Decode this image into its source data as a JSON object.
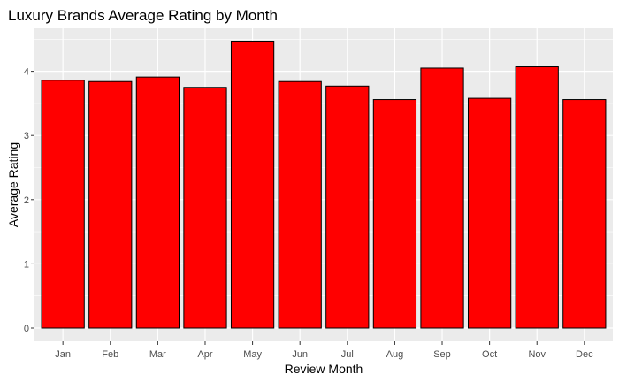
{
  "chart_data": {
    "type": "bar",
    "title": "Luxury Brands Average Rating by Month",
    "xlabel": "Review Month",
    "ylabel": "Average Rating",
    "categories": [
      "Jan",
      "Feb",
      "Mar",
      "Apr",
      "May",
      "Jun",
      "Jul",
      "Aug",
      "Sep",
      "Oct",
      "Nov",
      "Dec"
    ],
    "values": [
      3.86,
      3.84,
      3.91,
      3.75,
      4.47,
      3.84,
      3.77,
      3.56,
      4.05,
      3.58,
      4.07,
      3.56
    ],
    "yticks": [
      0,
      1,
      2,
      3,
      4
    ],
    "ylim": [
      0,
      4.7
    ],
    "grid": true,
    "legend": "none",
    "colors": {
      "bar_fill": "#ff0000",
      "bar_stroke": "#000000",
      "panel_background": "#ebebeb",
      "grid_line": "#ffffff"
    }
  }
}
